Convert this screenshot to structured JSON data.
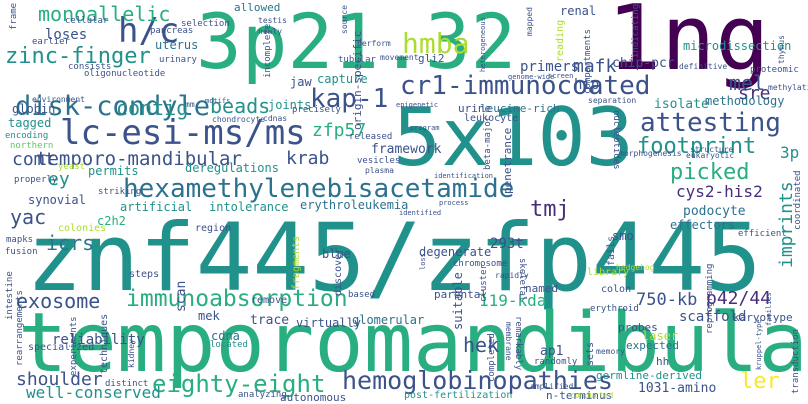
{
  "palette": {
    "dark_purple": "#440154",
    "purple": "#472d7b",
    "indigo": "#3b528b",
    "blue": "#2c728e",
    "teal": "#21918c",
    "green_teal": "#28ae80",
    "green": "#5ec962",
    "yellow_green": "#addc30",
    "yellow": "#fde725"
  },
  "words": {
    "znf445zfp445": "znf445/zfp445",
    "temporomandibular": "temporomandibular",
    "p2132": "3p21.32",
    "ng": "1ng",
    "x5103": "5x103",
    "hexamethylene": "hexamethylenebisacetamide",
    "cr1": "cr1-immunocoated",
    "lcesims": "lc-esi-ms/ms",
    "diskcondyle": "disk-condyle",
    "immunoabsorption": "immunoabsorption",
    "hemoglobinopathies": "hemoglobinopathies",
    "eightyeight": "eighty-eight",
    "hc": "h/c",
    "zincfinger": "zinc-finger",
    "monoallelic": "monoallelic",
    "hmba": "hmba",
    "kap1": "kap-1",
    "attesting": "attesting",
    "footprint": "footprint",
    "tempmand": "temporo-mandibular",
    "exosome": "exosome",
    "contig": "contig",
    "beads": "beads",
    "tmj": "tmj",
    "mafk": "mafk",
    "mel": "mel",
    "sre": "sre",
    "picked": "picked",
    "icrs": "icrs",
    "comt": "comt",
    "ey": "ey",
    "yac": "yac",
    "zfp57": "zfp57",
    "krab": "krab",
    "p4244": "p42/44",
    "ler": "ler",
    "hek": "hek",
    "kda119": "119-kda",
    "kb750": "750-kb",
    "shoulder": "shoulder",
    "wellconserved": "well-conserved",
    "loses": "loses",
    "cys2his2": "cys2-his2",
    "imprints": "imprints",
    "framework": "framework",
    "t293": "293t",
    "isolate": "isolate",
    "podocyte": "podocyte",
    "methodology": "methodology",
    "microdissection": "microdissection",
    "primers": "primers",
    "hip": "hip",
    "chippcr": "chip-pcr",
    "p3": "3p",
    "renal": "renal",
    "reliability": "reliability",
    "trace": "trace",
    "scaffold": "scaffold",
    "karyotype": "karyotype",
    "ap1": "ap1",
    "laser": "laser",
    "amino1031": "1031-amino",
    "germline": "germline-derived",
    "globin": "globin",
    "tagged": "tagged",
    "uterus": "uterus",
    "joints": "joints",
    "capture": "capture",
    "jaw": "jaw",
    "deregulations": "deregulations",
    "intolerance": "intolerance",
    "erythroleukemia": "erythroleukemia",
    "synovial": "synovial",
    "permits": "permits",
    "c2h2": "c2h2",
    "artificial": "artificial",
    "colonies": "colonies",
    "blue": "blue",
    "mek": "mek",
    "scan": "scan",
    "remove": "remove",
    "cdna": "cdna",
    "glomerular": "glomerular",
    "virtually": "virtually",
    "effectors": "effectors",
    "smo": "smo",
    "degenerate": "degenerate",
    "suitable": "suitable",
    "named": "named",
    "parental": "parental",
    "cluster": "cluster",
    "probes": "probes",
    "autonomous": "autonomous",
    "nterminus": "n-terminus",
    "postfert": "post-fertilization",
    "allowed": "allowed",
    "gli2": "gli2",
    "leucine": "leucine-rich",
    "urine": "urine",
    "leukocyte": "leukocyte",
    "originspecific": "origin-specific",
    "penetrance": "penetrance",
    "betamajor": "beta-major",
    "expected": "expected",
    "hh": "hh",
    "sets": "sets",
    "erythroid": "erythroid",
    "fails": "fails",
    "library": "library",
    "colon": "colon",
    "discover": "discover",
    "fragments": "fragments",
    "region": "region",
    "steps": "steps",
    "techniques": "techniques",
    "kidney": "kidney",
    "located": "located",
    "distinct": "distinct",
    "analyzing": "analyzing",
    "specialized": "specialized",
    "rearrangements": "rearrangements",
    "experiments": "experiments",
    "intestine": "intestine",
    "mapks": "mapks",
    "fusion": "fusion",
    "properly": "properly",
    "yeast": "yeast",
    "northern": "northern",
    "encoding": "encoding",
    "environment": "environment",
    "earlier": "earlier",
    "consists": "consists",
    "oligonucleotide": "oligonucleotide",
    "urinary": "urinary",
    "pancreas": "pancreas",
    "cellular": "cellular",
    "frame": "frame",
    "selection": "selection",
    "testis": "testis",
    "newly": "newly",
    "incomplete": "incomplete",
    "movement": "movement",
    "tubular": "tubular",
    "reading": "reading",
    "mapped": "mapped",
    "source": "source",
    "perform": "perform",
    "compartments": "compartments",
    "indicating": "indicating",
    "definitive": "definitive",
    "proteomic": "proteomic",
    "methylation": "methylation",
    "thymus": "thymus",
    "genomewide": "genome-wide",
    "screen": "screen",
    "epigenetic": "epigenetic",
    "separation": "separation",
    "eukaryotic": "eukaryotic",
    "structure": "structure",
    "morphogenesis": "morphogenesis",
    "nucleotides": "nucleotides",
    "identification": "identification",
    "precisely": "precisely",
    "cdnas": "cdnas",
    "chondrocyte": "chondrocyte",
    "motifs": "motifs",
    "mm": "mm",
    "released": "released",
    "vesicles": "vesicles",
    "plasma": "plasma",
    "striking": "striking",
    "identified": "identified",
    "process": "process",
    "chromosome": "chromosome",
    "rapidly": "rapidly",
    "skeletal": "skeletal",
    "membrane": "membrane",
    "memory": "memory",
    "remarkably": "remarkably",
    "completed": "completed",
    "amplified": "amplified",
    "randomly": "randomly",
    "conducted": "conducted",
    "reprogramming": "reprogramming",
    "hedgehog": "hedgehog",
    "efficient": "efficient",
    "coordinated": "coordinated",
    "transduction": "transduction",
    "families": "families",
    "krippel": "kruppel-type",
    "program": "program",
    "heterogeneous": "heterogeneous",
    "loss": "loss",
    "based": "based"
  }
}
